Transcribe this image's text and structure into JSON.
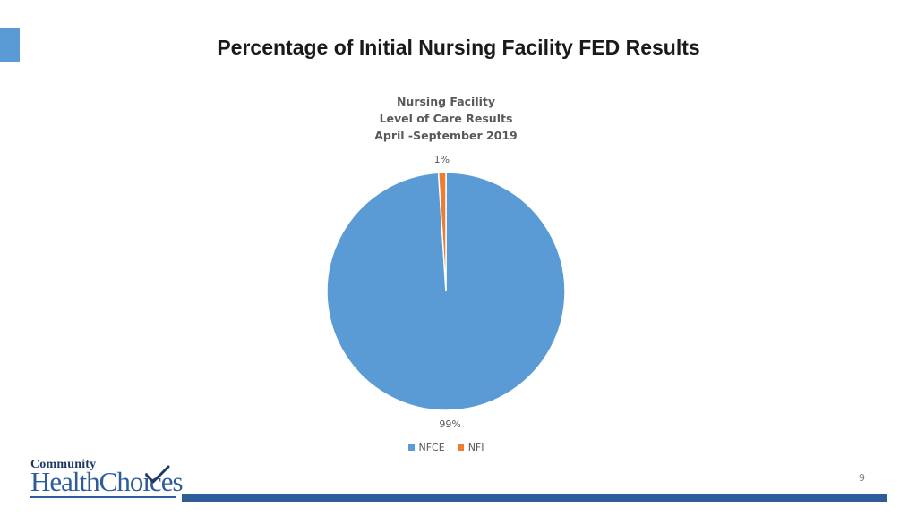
{
  "slide": {
    "title": "Percentage of Initial Nursing Facility FED Results",
    "page_number": "9",
    "accent_color": "#5b9bd5",
    "footer_bar_color": "#2e5c9a"
  },
  "logo": {
    "line1": "Community",
    "part1": "Health",
    "part2": "Choices",
    "icon": "checkmark-icon"
  },
  "chart_data": {
    "type": "pie",
    "title_lines": [
      "Nursing Facility",
      "Level of Care Results",
      "April -September 2019"
    ],
    "categories": [
      "NFCE",
      "NFI"
    ],
    "values": [
      99,
      1
    ],
    "data_labels": [
      "99%",
      "1%"
    ],
    "colors": [
      "#5b9bd5",
      "#ed7d31"
    ],
    "legend_position": "bottom"
  }
}
